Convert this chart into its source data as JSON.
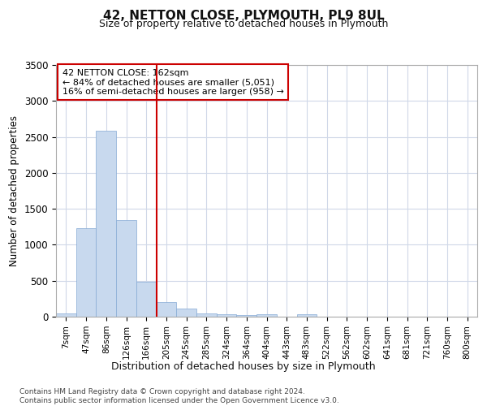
{
  "title": "42, NETTON CLOSE, PLYMOUTH, PL9 8UL",
  "subtitle": "Size of property relative to detached houses in Plymouth",
  "xlabel": "Distribution of detached houses by size in Plymouth",
  "ylabel": "Number of detached properties",
  "bar_labels": [
    "7sqm",
    "47sqm",
    "86sqm",
    "126sqm",
    "166sqm",
    "205sqm",
    "245sqm",
    "285sqm",
    "324sqm",
    "364sqm",
    "404sqm",
    "443sqm",
    "483sqm",
    "522sqm",
    "562sqm",
    "602sqm",
    "641sqm",
    "681sqm",
    "721sqm",
    "760sqm",
    "800sqm"
  ],
  "bar_values": [
    40,
    1230,
    2590,
    1340,
    490,
    200,
    110,
    40,
    30,
    20,
    30,
    0,
    30,
    0,
    0,
    0,
    0,
    0,
    0,
    0,
    0
  ],
  "bar_color": "#c8d9ee",
  "bar_edgecolor": "#85aad4",
  "vline_x": 4.5,
  "vline_color": "#cc0000",
  "annotation_text": "42 NETTON CLOSE: 162sqm\n← 84% of detached houses are smaller (5,051)\n16% of semi-detached houses are larger (958) →",
  "annotation_box_facecolor": "#ffffff",
  "annotation_box_edgecolor": "#cc0000",
  "ylim": [
    0,
    3500
  ],
  "yticks": [
    0,
    500,
    1000,
    1500,
    2000,
    2500,
    3000,
    3500
  ],
  "fig_bg_color": "#ffffff",
  "plot_bg_color": "#ffffff",
  "grid_color": "#d0d8e8",
  "footer_line1": "Contains HM Land Registry data © Crown copyright and database right 2024.",
  "footer_line2": "Contains public sector information licensed under the Open Government Licence v3.0."
}
